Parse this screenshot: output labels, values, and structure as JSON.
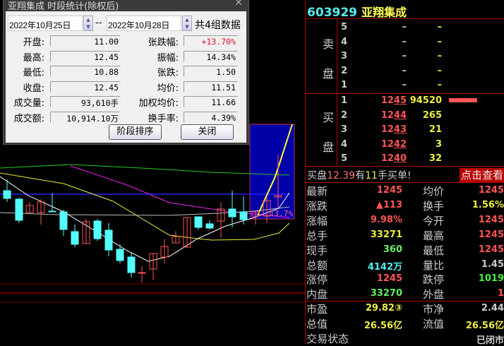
{
  "dialog": {
    "title": "亚翔集成 时段统计(除权后)",
    "start_date": "2022年10月25日",
    "end_date": "2022年10月28日",
    "separator": "--",
    "count_text": "共4组数据",
    "left": [
      {
        "label": "开盘:",
        "value": "11.00"
      },
      {
        "label": "最高:",
        "value": "12.45"
      },
      {
        "label": "最低:",
        "value": "10.88"
      },
      {
        "label": "收盘:",
        "value": "12.45"
      },
      {
        "label": "成交量:",
        "value": "93,610手"
      },
      {
        "label": "成交额:",
        "value": "10,914.10万"
      }
    ],
    "right": [
      {
        "label": "张跌幅:",
        "value": "+13.70%",
        "color": "#e0102a"
      },
      {
        "label": "振幅:",
        "value": "14.34%"
      },
      {
        "label": "张跌:",
        "value": "1.50"
      },
      {
        "label": "均价:",
        "value": "11.51"
      },
      {
        "label": "加权均价:",
        "value": "11.66"
      },
      {
        "label": "换手率:",
        "value": "4.39%"
      }
    ],
    "sort_button": "阶段排序",
    "close_button": "关闭"
  },
  "chart": {
    "range_label": "13.7%"
  },
  "quote": {
    "code": "603929",
    "name": "亚翔集成",
    "sell_label": [
      "卖",
      "盘"
    ],
    "buy_label": [
      "买",
      "盘"
    ],
    "sell": [
      {
        "level": "5",
        "price": "–",
        "vol": "–"
      },
      {
        "level": "4",
        "price": "–",
        "vol": "–"
      },
      {
        "level": "3",
        "price": "–",
        "vol": "–"
      },
      {
        "level": "2",
        "price": "–",
        "vol": "–"
      },
      {
        "level": "1",
        "price": "–",
        "vol": "–"
      }
    ],
    "buy": [
      {
        "level": "1",
        "price_a": "12",
        "price_b": "45",
        "vol": "94520"
      },
      {
        "level": "2",
        "price_a": "12",
        "price_b": "44",
        "vol": "265"
      },
      {
        "level": "3",
        "price_a": "12",
        "price_b": "43",
        "vol": "21"
      },
      {
        "level": "4",
        "price_a": "12",
        "price_b": "42",
        "vol": "3"
      },
      {
        "level": "5",
        "price_a": "12",
        "price_b": "40",
        "vol": "32"
      }
    ],
    "banner": {
      "p1": "买盘",
      "price": "12.39",
      "p2": "有",
      "qty": "11",
      "p3": "手买单!",
      "button": "点击查看"
    },
    "stats": [
      {
        "l": "最新",
        "v": "1245",
        "c": "#f55",
        "r": "均价",
        "rv": "1245",
        "rc": "#f55"
      },
      {
        "l": "涨跌",
        "v": "▲113",
        "c": "#f55",
        "r": "换手",
        "rv": "1.56%",
        "rc": "#ee4"
      },
      {
        "l": "涨幅",
        "v": "9.98%",
        "c": "#f55",
        "r": "今开",
        "rv": "1245",
        "rc": "#f55"
      },
      {
        "l": "总手",
        "v": "33271",
        "c": "#ee4",
        "r": "最高",
        "rv": "1245",
        "rc": "#f55"
      },
      {
        "l": "现手",
        "v": "360",
        "c": "#6e6",
        "r": "最低",
        "rv": "1245",
        "rc": "#f55"
      },
      {
        "l": "总额",
        "v": "4142万",
        "c": "#5ee",
        "r": "量比",
        "rv": "1.45",
        "rc": "#ccc"
      },
      {
        "l": "涨停",
        "v": "1245",
        "c": "#f55",
        "r": "跌停",
        "rv": "1019",
        "rc": "#4e4"
      },
      {
        "l": "内盘",
        "v": "33270",
        "c": "#6e6",
        "r": "外盘",
        "rv": "1",
        "rc": "#f55"
      }
    ],
    "stats2": [
      {
        "l": "市盈",
        "v": "29.82③",
        "c": "#ee4",
        "r": "市净",
        "rv": "2.44",
        "rc": "#ccc"
      },
      {
        "l": "总值",
        "v": "26.56亿",
        "c": "#ee4",
        "r": "流值",
        "rv": "26.56亿",
        "rc": "#ee4"
      },
      {
        "l": "交易状态",
        "v": "",
        "c": "#ccc",
        "r": "",
        "rv": "已闭市",
        "rc": "#ccc"
      }
    ]
  }
}
